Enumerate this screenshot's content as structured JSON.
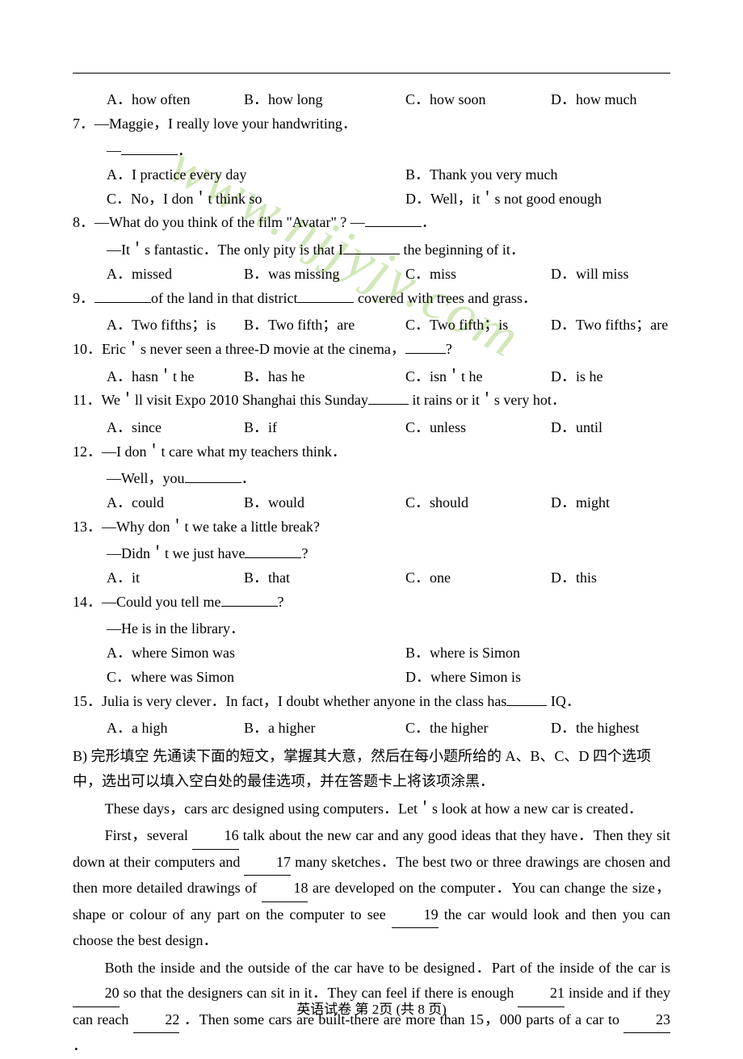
{
  "page": {
    "footer": "英语试卷 第 2页 (共 8 页)",
    "watermark": "www.njjyjy.com"
  },
  "questions": [
    {
      "num": "",
      "text": "",
      "subs": [],
      "opts": [
        "A．how often",
        "B．how long",
        "C．how soon",
        "D．how much"
      ],
      "layout": "4"
    },
    {
      "num": "7．",
      "text": "—Maggie，I really love your handwriting．",
      "subs": [
        "—________．"
      ],
      "opts2a": [
        "A．I practice every day",
        "B．Thank you very much"
      ],
      "opts2b": [
        "C．No，I don＇t think so",
        "D．Well，it＇s not good enough"
      ],
      "layout": "2x2"
    },
    {
      "num": "8．",
      "text": "—What do you think of the film \"Avatar\" ? —________．",
      "subs": [
        "—It＇s fantastic．The only pity is that I________ the beginning of it．"
      ],
      "opts": [
        "A．missed",
        "B．was missing",
        "C．miss",
        "D．will miss"
      ],
      "layout": "4"
    },
    {
      "num": "9．",
      "text": "________of the land in that district________ covered with trees and grass．",
      "subs": [],
      "opts": [
        "A．Two fifths；is",
        "B．Two fifth；are",
        "C．Two fifth；is",
        "D．Two fifths；are"
      ],
      "layout": "4"
    },
    {
      "num": "10．",
      "text": "Eric＇s never seen a three-D movie at the cinema，________?",
      "subs": [],
      "opts": [
        "A．hasn＇t he",
        "B．has he",
        "C．isn＇t he",
        "D．is he"
      ],
      "layout": "4"
    },
    {
      "num": "11．",
      "text": "We＇ll visit Expo 2010 Shanghai this Sunday________ it rains or it＇s very hot．",
      "subs": [],
      "opts": [
        "A．since",
        "B．if",
        "C．unless",
        "D．until"
      ],
      "layout": "4"
    },
    {
      "num": "12．",
      "text": "—I don＇t care what my teachers think．",
      "subs": [
        "—Well，you________．"
      ],
      "opts": [
        "A．could",
        "B．would",
        "C．should",
        "D．might"
      ],
      "layout": "4"
    },
    {
      "num": "13．",
      "text": "—Why don＇t we take a little break?",
      "subs": [
        "—Didn＇t we just have________?"
      ],
      "opts": [
        "A．it",
        "B．that",
        "C．one",
        "D．this"
      ],
      "layout": "4"
    },
    {
      "num": "14．",
      "text": "—Could you tell me________?",
      "subs": [
        "—He is in the library．"
      ],
      "opts2a": [
        "A．where Simon was",
        "B．where is Simon"
      ],
      "opts2b": [
        "C．where was Simon",
        "D．where Simon is"
      ],
      "layout": "2x2"
    },
    {
      "num": "15．",
      "text": "Julia is very clever．In fact，I doubt whether anyone in the class has________ IQ．",
      "subs": [],
      "opts": [
        "A．a high",
        "B．a higher",
        "C．the higher",
        "D．the highest"
      ],
      "layout": "4"
    }
  ],
  "sectionB": {
    "title": "B) 完形填空  先通读下面的短文，掌握其大意，然后在每小题所给的 A、B、C、D 四个选项中，选出可以填入空白处的最佳选项，并在答题卡上将该项涂黑．",
    "p1": "These days，cars arc designed using computers．Let＇s look at how a new car is created．",
    "p2a": "First，several ",
    "b16": "16",
    "p2b": " talk about the new car and any good ideas that they have．Then they sit down at their computers and ",
    "b17": "17",
    "p2c": " many sketches．The best two or three drawings are chosen and then more detailed drawings of ",
    "b18": "18",
    "p2d": " are developed on the computer．You can change the size，shape or colour of any part on the computer to see ",
    "b19": "19",
    "p2e": " the car would look and then you can choose the best design．",
    "p3a": "Both the inside and the outside of the car have to be designed．Part of the inside of the car is ",
    "b20": "20",
    "p3b": " so that the designers can sit in it．They can feel if there is enough ",
    "b21": "21",
    "p3c": " inside and if they can reach ",
    "b22": "22",
    "p3d": " ．Then some cars are built-there are more than 15，000 parts of a car to ",
    "b23": "23",
    "p3e": " ．"
  }
}
